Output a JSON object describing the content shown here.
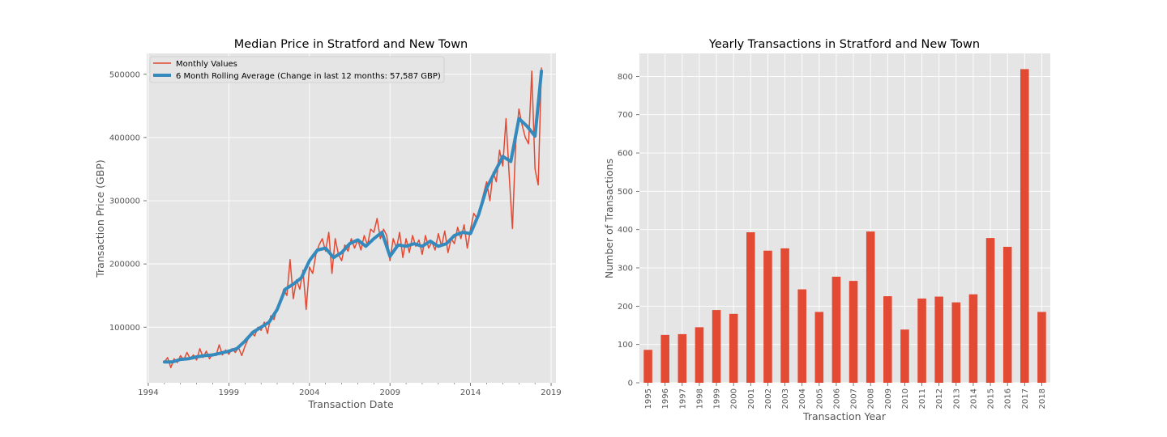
{
  "colors": {
    "background": "#E5E5E5",
    "grid": "#FFFFFF",
    "monthly": "#E24A33",
    "rolling": "#348ABD",
    "bar": "#E24A33",
    "text": "#555555"
  },
  "chart_data": [
    {
      "type": "line",
      "title": "Median Price in Stratford and New Town",
      "xlabel": "Transaction Date",
      "ylabel": "Transaction Price (GBP)",
      "xlim": [
        1993.9,
        2019.3
      ],
      "ylim": [
        12000,
        533000
      ],
      "xticks": [
        "1994",
        "1999",
        "2004",
        "2009",
        "2014",
        "2019"
      ],
      "yticks": [
        "100000",
        "200000",
        "300000",
        "400000",
        "500000"
      ],
      "grid": true,
      "legend_position": "top-left",
      "series": [
        {
          "name": "Monthly Values",
          "style": "thin",
          "x": [
            1995.0,
            1995.2,
            1995.4,
            1995.6,
            1995.8,
            1996.0,
            1996.2,
            1996.4,
            1996.6,
            1996.8,
            1997.0,
            1997.2,
            1997.4,
            1997.6,
            1997.8,
            1998.0,
            1998.2,
            1998.4,
            1998.6,
            1998.8,
            1999.0,
            1999.2,
            1999.4,
            1999.6,
            1999.8,
            2000.0,
            2000.2,
            2000.4,
            2000.6,
            2000.8,
            2001.0,
            2001.2,
            2001.4,
            2001.6,
            2001.8,
            2002.0,
            2002.2,
            2002.4,
            2002.6,
            2002.8,
            2003.0,
            2003.2,
            2003.4,
            2003.6,
            2003.8,
            2004.0,
            2004.2,
            2004.4,
            2004.6,
            2004.8,
            2005.0,
            2005.2,
            2005.4,
            2005.6,
            2005.8,
            2006.0,
            2006.2,
            2006.4,
            2006.6,
            2006.8,
            2007.0,
            2007.2,
            2007.4,
            2007.6,
            2007.8,
            2008.0,
            2008.2,
            2008.4,
            2008.6,
            2008.8,
            2009.0,
            2009.2,
            2009.4,
            2009.6,
            2009.8,
            2010.0,
            2010.2,
            2010.4,
            2010.6,
            2010.8,
            2011.0,
            2011.2,
            2011.4,
            2011.6,
            2011.8,
            2012.0,
            2012.2,
            2012.4,
            2012.6,
            2012.8,
            2013.0,
            2013.2,
            2013.4,
            2013.6,
            2013.8,
            2014.0,
            2014.2,
            2014.4,
            2014.6,
            2014.8,
            2015.0,
            2015.2,
            2015.4,
            2015.6,
            2015.8,
            2016.0,
            2016.2,
            2016.4,
            2016.6,
            2016.8,
            2017.0,
            2017.2,
            2017.4,
            2017.6,
            2017.8,
            2018.0,
            2018.2,
            2018.4
          ],
          "values": [
            45000,
            52000,
            36000,
            50000,
            44000,
            55000,
            48000,
            60000,
            50000,
            56000,
            48000,
            66000,
            52000,
            62000,
            50000,
            58000,
            55000,
            72000,
            56000,
            64000,
            57000,
            66000,
            60000,
            68000,
            55000,
            70000,
            82000,
            92000,
            86000,
            100000,
            95000,
            108000,
            90000,
            118000,
            112000,
            130000,
            140000,
            160000,
            150000,
            207000,
            145000,
            175000,
            160000,
            190000,
            128000,
            195000,
            185000,
            215000,
            230000,
            240000,
            220000,
            250000,
            185000,
            240000,
            215000,
            205000,
            230000,
            220000,
            240000,
            225000,
            238000,
            222000,
            245000,
            230000,
            255000,
            250000,
            272000,
            240000,
            255000,
            245000,
            205000,
            240000,
            225000,
            250000,
            210000,
            240000,
            218000,
            245000,
            228000,
            238000,
            215000,
            245000,
            225000,
            235000,
            222000,
            248000,
            228000,
            252000,
            218000,
            240000,
            232000,
            258000,
            240000,
            262000,
            225000,
            255000,
            280000,
            272000,
            290000,
            310000,
            330000,
            300000,
            345000,
            330000,
            380000,
            355000,
            430000,
            340000,
            256000,
            390000,
            445000,
            420000,
            400000,
            390000,
            505000,
            350000,
            325000,
            510000
          ]
        },
        {
          "name": "6 Month Rolling Average (Change in last 12 months: 57,587 GBP)",
          "style": "thick",
          "x": [
            1995.0,
            1995.5,
            1996.0,
            1996.5,
            1997.0,
            1997.5,
            1998.0,
            1998.5,
            1999.0,
            1999.5,
            2000.0,
            2000.5,
            2001.0,
            2001.5,
            2002.0,
            2002.5,
            2003.0,
            2003.5,
            2004.0,
            2004.5,
            2005.0,
            2005.5,
            2006.0,
            2006.5,
            2007.0,
            2007.5,
            2008.0,
            2008.5,
            2009.0,
            2009.5,
            2010.0,
            2010.5,
            2011.0,
            2011.5,
            2012.0,
            2012.5,
            2013.0,
            2013.5,
            2014.0,
            2014.5,
            2015.0,
            2015.5,
            2016.0,
            2016.5,
            2017.0,
            2017.5,
            2018.0,
            2018.4
          ],
          "values": [
            45000,
            45000,
            49000,
            50000,
            53000,
            55000,
            56000,
            59000,
            62000,
            66000,
            78000,
            92000,
            100000,
            108000,
            128000,
            160000,
            168000,
            178000,
            205000,
            222000,
            225000,
            210000,
            218000,
            232000,
            238000,
            228000,
            240000,
            250000,
            212000,
            230000,
            228000,
            232000,
            228000,
            236000,
            228000,
            232000,
            245000,
            250000,
            248000,
            278000,
            320000,
            345000,
            370000,
            362000,
            430000,
            418000,
            402000,
            505000
          ]
        }
      ]
    },
    {
      "type": "bar",
      "title": "Yearly Transactions in Stratford and New Town",
      "xlabel": "Transaction Year",
      "ylabel": "Number of Transactions",
      "ylim": [
        0,
        860
      ],
      "yticks": [
        "0",
        "100",
        "200",
        "300",
        "400",
        "500",
        "600",
        "700",
        "800"
      ],
      "grid": true,
      "categories": [
        "1995",
        "1996",
        "1997",
        "1998",
        "1999",
        "2000",
        "2001",
        "2002",
        "2003",
        "2004",
        "2005",
        "2006",
        "2007",
        "2008",
        "2009",
        "2010",
        "2011",
        "2012",
        "2013",
        "2014",
        "2015",
        "2016",
        "2017",
        "2018"
      ],
      "values": [
        86,
        125,
        127,
        145,
        190,
        180,
        393,
        345,
        351,
        244,
        185,
        277,
        266,
        395,
        226,
        139,
        220,
        225,
        210,
        231,
        378,
        355,
        819,
        185
      ]
    }
  ]
}
